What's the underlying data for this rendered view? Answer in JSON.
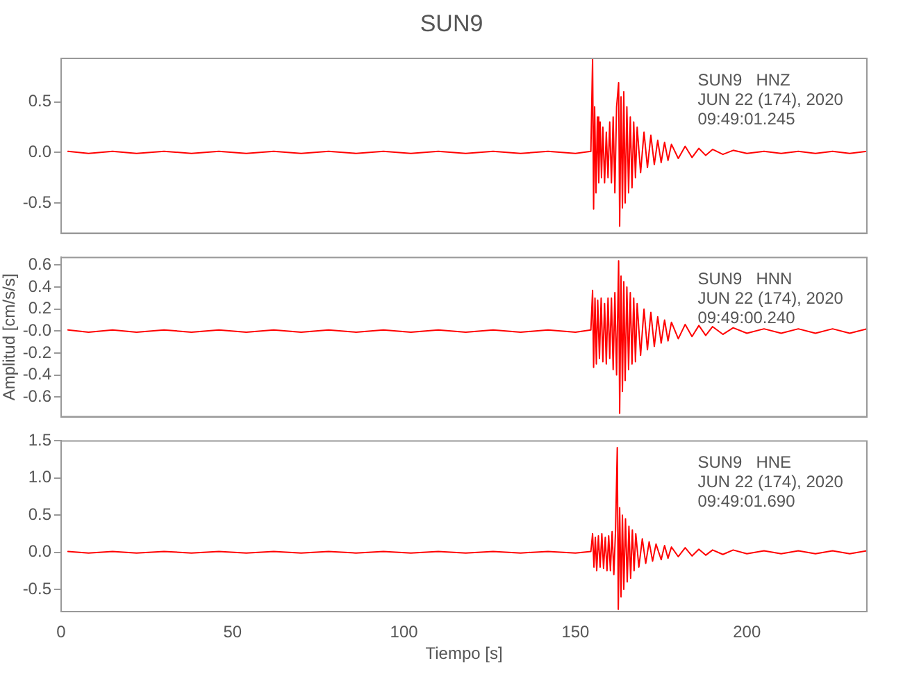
{
  "chart_data": [
    {
      "type": "line",
      "title": "SUN9",
      "tick_labels": "y",
      "color": "#ff0000",
      "annotations": [
        "SUN9   HNZ",
        "JUN 22 (174), 2020",
        "09:49:01.245"
      ],
      "xlim": [
        0,
        235
      ],
      "ylim": [
        -0.8,
        0.93
      ],
      "yticks": [
        {
          "value": -0.5,
          "label": "-0.5"
        },
        {
          "value": 0,
          "label": "0.0"
        },
        {
          "value": 0.5,
          "label": "0.5"
        }
      ],
      "x": [
        2,
        8,
        15,
        22,
        30,
        38,
        46,
        54,
        62,
        70,
        78,
        86,
        94,
        102,
        110,
        118,
        126,
        134,
        142,
        150,
        154.5,
        155,
        155.3,
        155.6,
        156,
        156.4,
        156.8,
        157.2,
        157.6,
        158,
        158.5,
        159,
        159.5,
        160,
        160.5,
        161,
        161.5,
        162,
        162.6,
        162.9,
        163.3,
        163.7,
        164.1,
        164.5,
        165,
        165.5,
        166,
        166.5,
        167,
        167.5,
        168,
        169,
        170,
        171,
        172,
        173,
        174,
        175,
        176,
        177,
        178,
        180,
        182,
        184,
        186,
        188,
        190,
        193,
        196,
        200,
        205,
        210,
        215,
        220,
        225,
        230,
        235
      ],
      "values": [
        0.01,
        -0.01,
        0.01,
        -0.01,
        0.01,
        -0.01,
        0.01,
        -0.01,
        0.01,
        -0.01,
        0.01,
        -0.01,
        0.01,
        -0.01,
        0.01,
        -0.01,
        0.01,
        -0.01,
        0.01,
        -0.01,
        0.01,
        0.93,
        -0.56,
        0.45,
        -0.4,
        0.35,
        -0.3,
        0.3,
        -0.25,
        0.25,
        -0.3,
        0.2,
        -0.25,
        0.3,
        -0.3,
        0.35,
        -0.4,
        0.45,
        0.69,
        -0.73,
        0.55,
        -0.55,
        0.6,
        -0.5,
        0.45,
        -0.4,
        0.35,
        -0.35,
        0.3,
        -0.25,
        0.25,
        -0.2,
        0.2,
        -0.15,
        0.17,
        -0.12,
        0.12,
        -0.1,
        0.1,
        -0.08,
        0.08,
        -0.06,
        0.06,
        -0.05,
        0.04,
        -0.03,
        0.03,
        -0.02,
        0.02,
        -0.01,
        0.01,
        -0.01,
        0.01,
        -0.01,
        0.01,
        -0.01,
        0.01
      ]
    },
    {
      "type": "line",
      "ylabel": "Amplitud [cm/s/s]",
      "tick_labels": "y",
      "color": "#ff0000",
      "annotations": [
        "SUN9   HNN",
        "JUN 22 (174), 2020",
        "09:49:00.240"
      ],
      "xlim": [
        0,
        235
      ],
      "ylim": [
        -0.78,
        0.67
      ],
      "yticks": [
        -0.6,
        -0.4,
        -0.2,
        {
          "value": 0,
          "label": "-0.0"
        },
        0.2,
        0.4,
        0.6
      ],
      "x": [
        2,
        8,
        15,
        22,
        30,
        38,
        46,
        54,
        62,
        70,
        78,
        86,
        94,
        102,
        110,
        118,
        126,
        134,
        142,
        150,
        154.5,
        155,
        155.3,
        155.7,
        156.1,
        156.5,
        157,
        157.5,
        158,
        158.5,
        159,
        159.5,
        160,
        160.5,
        161,
        161.5,
        162,
        162.6,
        162.9,
        163.3,
        163.7,
        164.1,
        164.5,
        165,
        165.5,
        166,
        166.5,
        167,
        167.5,
        168,
        169,
        170,
        171,
        172,
        173,
        174,
        175,
        176,
        177,
        178,
        180,
        182,
        184,
        186,
        188,
        190,
        193,
        196,
        200,
        205,
        210,
        215,
        220,
        225,
        230,
        235
      ],
      "values": [
        0.01,
        -0.01,
        0.01,
        -0.01,
        0.01,
        -0.01,
        0.01,
        -0.01,
        0.01,
        -0.01,
        0.01,
        -0.01,
        0.01,
        -0.01,
        0.01,
        -0.01,
        0.01,
        -0.01,
        0.01,
        -0.01,
        0.01,
        0.37,
        -0.33,
        0.3,
        -0.3,
        0.28,
        -0.25,
        0.3,
        -0.28,
        0.25,
        -0.3,
        0.3,
        -0.25,
        0.3,
        -0.35,
        0.35,
        -0.4,
        0.64,
        -0.75,
        0.5,
        -0.55,
        0.45,
        -0.45,
        0.4,
        -0.35,
        0.35,
        -0.3,
        0.3,
        -0.28,
        0.25,
        -0.22,
        0.2,
        -0.17,
        0.17,
        -0.14,
        0.13,
        -0.11,
        0.1,
        -0.09,
        0.08,
        -0.07,
        0.06,
        -0.05,
        0.05,
        -0.04,
        0.04,
        -0.03,
        0.03,
        -0.02,
        0.02,
        -0.02,
        0.02,
        -0.02,
        0.02,
        -0.02,
        0.02
      ]
    },
    {
      "type": "line",
      "xlabel": "Tiempo [s]",
      "color": "#ff0000",
      "annotations": [
        "SUN9   HNE",
        "JUN 22 (174), 2020",
        "09:49:01.690"
      ],
      "xlim": [
        0,
        235
      ],
      "xticks": [
        0,
        50,
        100,
        150,
        200
      ],
      "ylim": [
        -0.8,
        1.5
      ],
      "yticks": [
        {
          "value": -0.5,
          "label": "-0.5"
        },
        {
          "value": 0,
          "label": "0.0"
        },
        {
          "value": 0.5,
          "label": "0.5"
        },
        {
          "value": 1,
          "label": "1.0"
        },
        {
          "value": 1.5,
          "label": "1.5"
        }
      ],
      "x": [
        2,
        8,
        15,
        22,
        30,
        38,
        46,
        54,
        62,
        70,
        78,
        86,
        94,
        102,
        110,
        118,
        126,
        134,
        142,
        150,
        154.5,
        155,
        155.4,
        155.8,
        156.2,
        156.7,
        157.2,
        157.7,
        158.2,
        158.7,
        159.2,
        159.7,
        160.2,
        160.7,
        161.2,
        161.7,
        162.2,
        162.5,
        162.9,
        163.3,
        163.7,
        164.1,
        164.6,
        165.1,
        165.6,
        166.1,
        166.6,
        167.1,
        167.6,
        168.5,
        169.5,
        170.5,
        171.5,
        172.5,
        173.5,
        175,
        176,
        177,
        178,
        180,
        182,
        184,
        186,
        188,
        190,
        193,
        196,
        200,
        205,
        210,
        215,
        220,
        225,
        230,
        235
      ],
      "values": [
        0.01,
        -0.01,
        0.01,
        -0.01,
        0.01,
        -0.01,
        0.01,
        -0.01,
        0.01,
        -0.01,
        0.01,
        -0.01,
        0.01,
        -0.01,
        0.01,
        -0.01,
        0.01,
        -0.01,
        0.01,
        -0.01,
        0.01,
        0.25,
        -0.2,
        0.2,
        -0.25,
        0.22,
        -0.2,
        0.25,
        -0.22,
        0.2,
        -0.25,
        0.22,
        -0.25,
        0.28,
        -0.3,
        0.3,
        1.41,
        -0.77,
        0.6,
        -0.6,
        0.5,
        -0.5,
        0.45,
        -0.4,
        0.35,
        -0.35,
        0.3,
        -0.25,
        0.25,
        -0.2,
        0.18,
        -0.15,
        0.14,
        -0.12,
        0.11,
        -0.1,
        0.09,
        -0.08,
        0.07,
        -0.06,
        0.06,
        -0.05,
        0.04,
        -0.04,
        0.03,
        -0.03,
        0.03,
        -0.02,
        0.02,
        -0.02,
        0.02,
        -0.02,
        0.02,
        -0.02,
        0.02
      ]
    }
  ]
}
